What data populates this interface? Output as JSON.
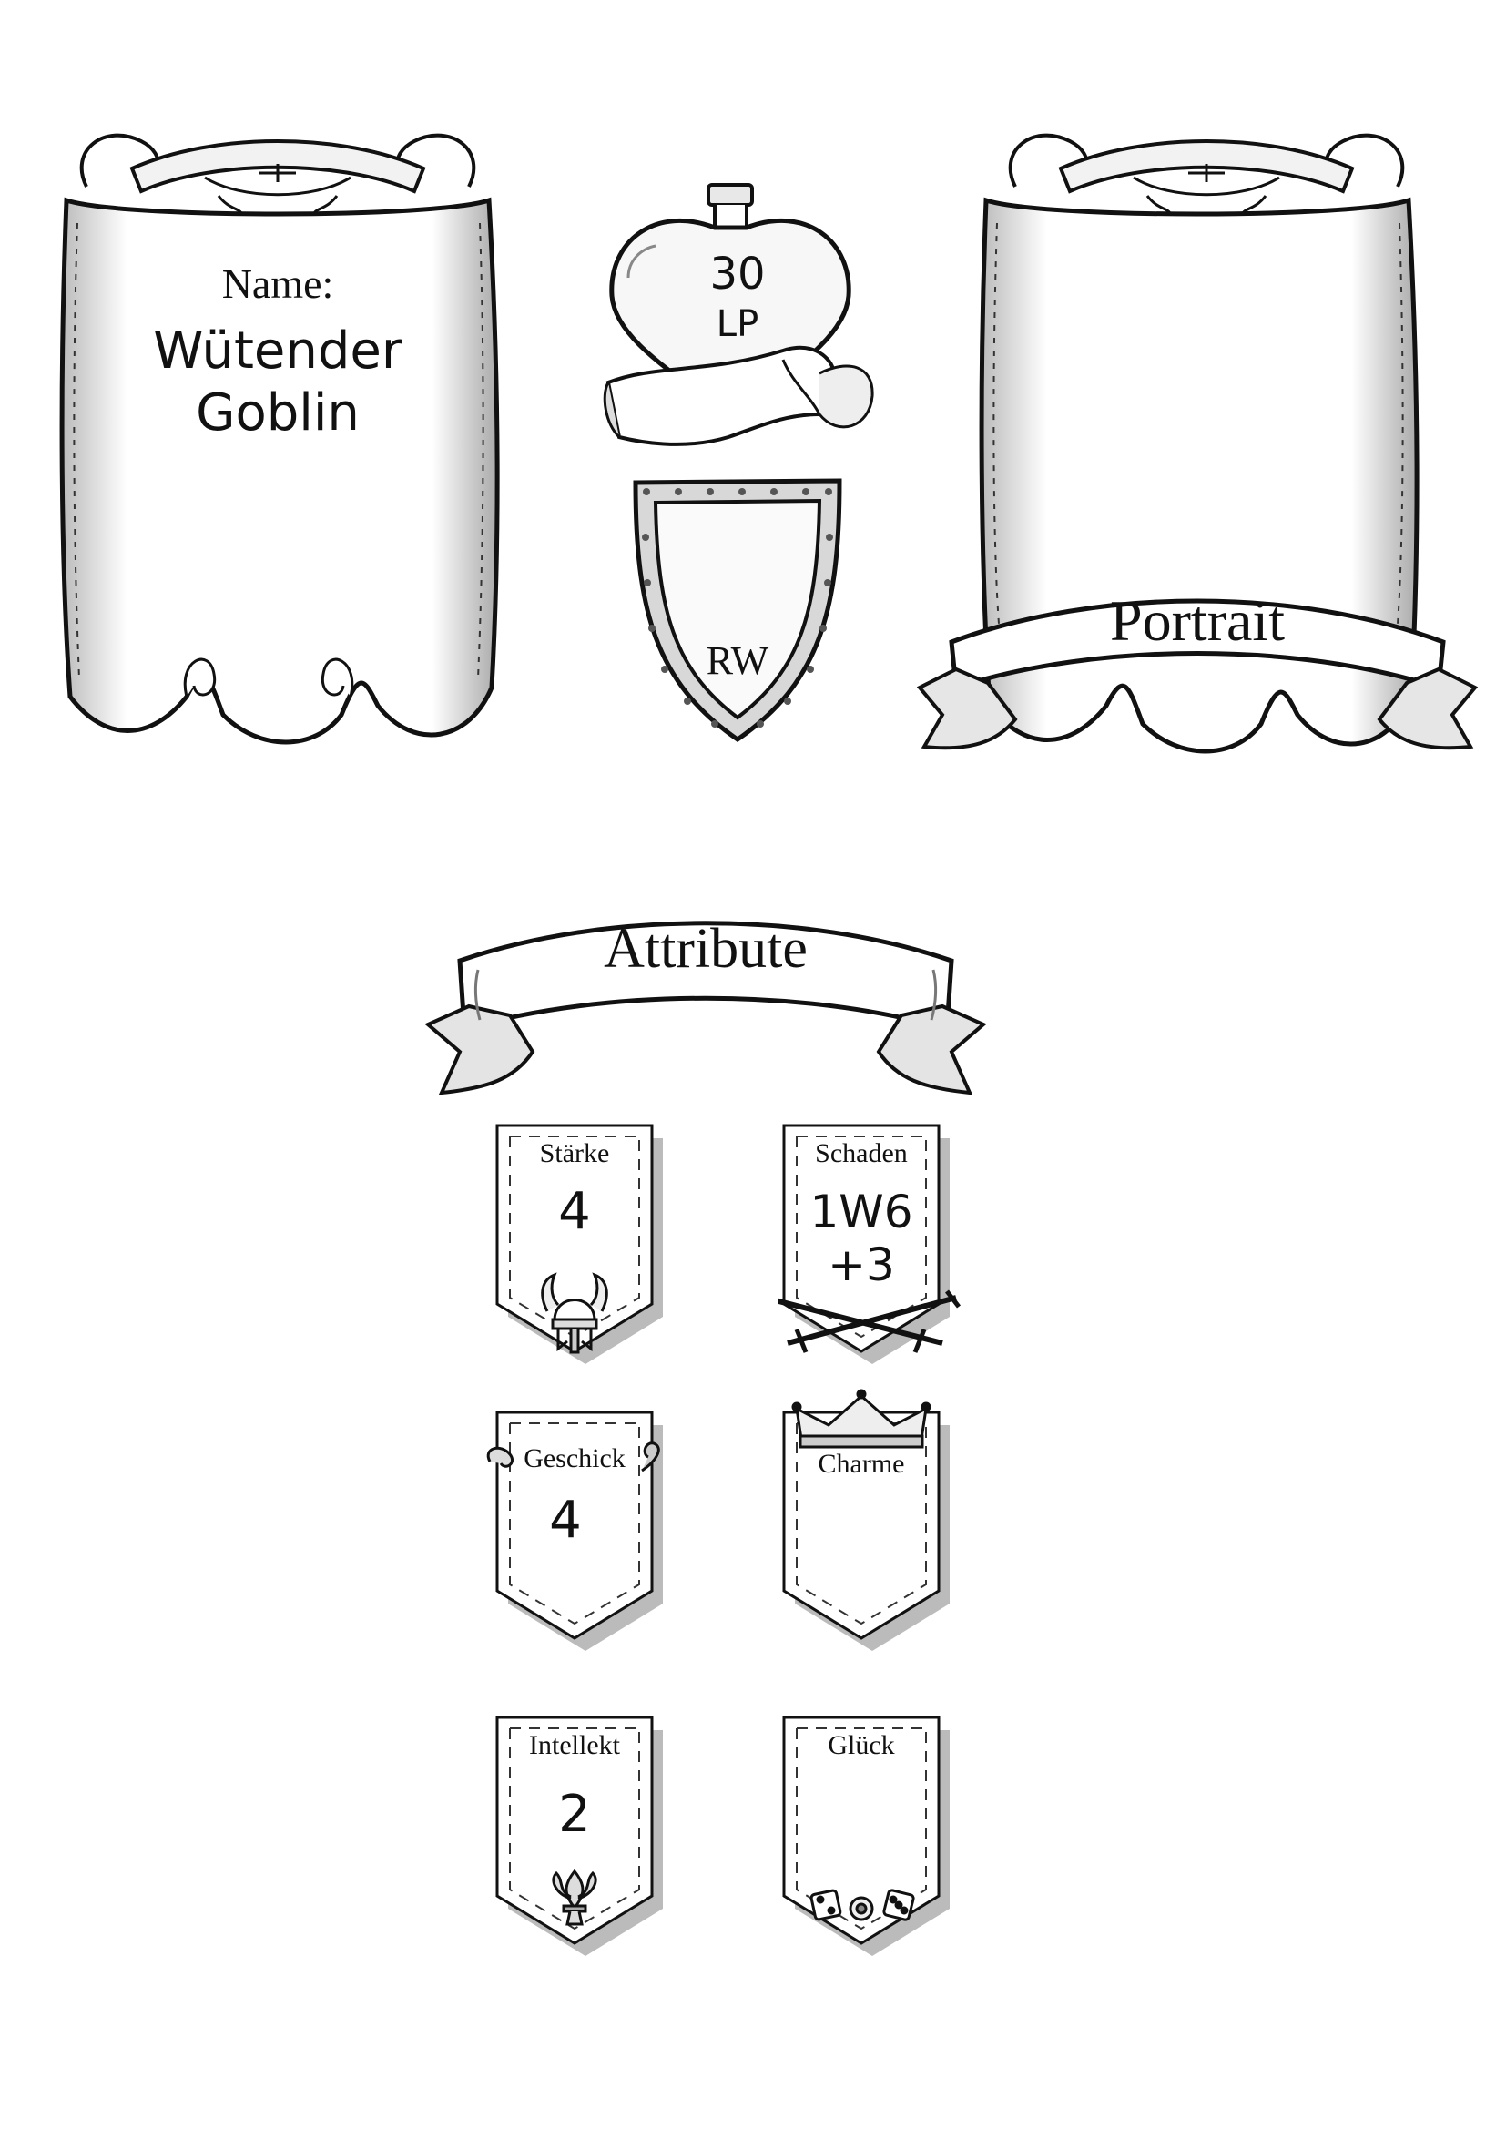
{
  "name_scroll": {
    "label": "Name:",
    "value_line1": "Wütender",
    "value_line2": "Goblin"
  },
  "potion": {
    "value": "30",
    "unit": "LP"
  },
  "shield": {
    "label": "RW"
  },
  "portrait": {
    "label": "Portrait"
  },
  "attributes": {
    "title": "Attribute",
    "cards": [
      {
        "label": "Stärke",
        "value_line1": "4",
        "value_line2": "",
        "icon": "viking-helmet-icon"
      },
      {
        "label": "Schaden",
        "value_line1": "1W6",
        "value_line2": "+3",
        "icon": "crossed-swords-icon"
      },
      {
        "label": "Geschick",
        "value_line1": "4",
        "value_line2": "",
        "icon": "vine-ornament-icon"
      },
      {
        "label": "Charme",
        "value_line1": "",
        "value_line2": "",
        "icon": "crown-icon"
      },
      {
        "label": "Intellekt",
        "value_line1": "2",
        "value_line2": "",
        "icon": "fleur-de-lis-icon"
      },
      {
        "label": "Glück",
        "value_line1": "",
        "value_line2": "",
        "icon": "dice-icon"
      }
    ]
  }
}
